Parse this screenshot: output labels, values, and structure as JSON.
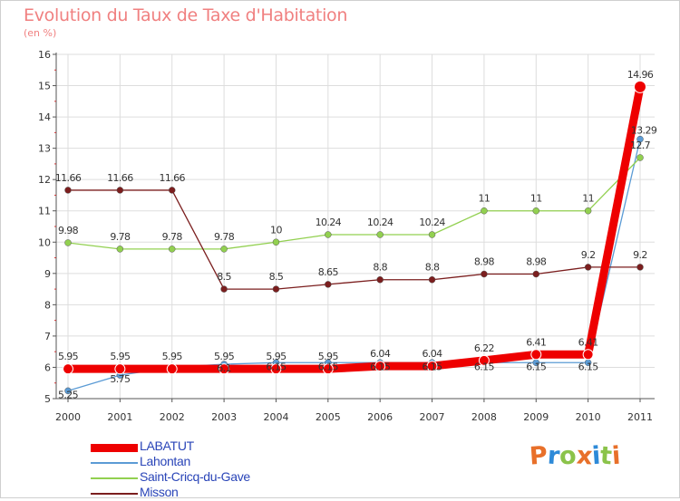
{
  "title": "Evolution du Taux de Taxe d'Habitation",
  "unit": "(en %)",
  "logo_text": "Proxiti",
  "colors": {
    "background": "#ffffff",
    "title": "#f08080",
    "grid": "#dddddd",
    "axis": "#555555",
    "legend_text": "#2a45b8"
  },
  "chart_data": {
    "type": "line",
    "title": "Evolution du Taux de Taxe d'Habitation",
    "ylabel": "(en %)",
    "xlabel": "",
    "ylim": [
      5,
      16
    ],
    "yticks": [
      "5",
      "6",
      "7",
      "8",
      "9",
      "10",
      "11",
      "12",
      "13",
      "14",
      "15",
      "16"
    ],
    "categories": [
      "2000",
      "2001",
      "2002",
      "2003",
      "2004",
      "2005",
      "2006",
      "2007",
      "2008",
      "2009",
      "2010",
      "2011"
    ],
    "grid": true,
    "legend_position": "bottom-left",
    "series": [
      {
        "name": "LABATUT",
        "color": "#ee0000",
        "style": "thick",
        "values": [
          5.95,
          5.95,
          5.95,
          5.95,
          5.95,
          5.95,
          6.04,
          6.04,
          6.22,
          6.41,
          6.41,
          14.96
        ],
        "labels": [
          "5.95",
          "5.95",
          "5.95",
          "5.95",
          "5.95",
          "5.95",
          "6.04",
          "6.04",
          "6.22",
          "6.41",
          "6.41",
          "14.96"
        ]
      },
      {
        "name": "Lahontan",
        "color": "#5b9bd5",
        "style": "thin",
        "values": [
          5.25,
          5.75,
          6.0,
          6.1,
          6.15,
          6.15,
          6.15,
          6.15,
          6.15,
          6.15,
          6.15,
          13.29
        ],
        "labels": [
          "5.25",
          "5.75",
          "",
          "6.1",
          "6.15",
          "6.15",
          "6.15",
          "6.15",
          "6.15",
          "6.15",
          "6.15",
          "13.29"
        ]
      },
      {
        "name": "Saint-Cricq-du-Gave",
        "color": "#92d050",
        "style": "thin",
        "values": [
          9.98,
          9.78,
          9.78,
          9.78,
          10,
          10.24,
          10.24,
          10.24,
          11,
          11,
          11,
          12.7
        ],
        "labels": [
          "9.98",
          "9.78",
          "9.78",
          "9.78",
          "10",
          "10.24",
          "10.24",
          "10.24",
          "11",
          "11",
          "11",
          "12.7"
        ]
      },
      {
        "name": "Misson",
        "color": "#7b1e1e",
        "style": "thin",
        "values": [
          11.66,
          11.66,
          11.66,
          8.5,
          8.5,
          8.65,
          8.8,
          8.8,
          8.98,
          8.98,
          9.2,
          9.2
        ],
        "labels": [
          "11.66",
          "11.66",
          "11.66",
          "8.5",
          "8.5",
          "8.65",
          "8.8",
          "8.8",
          "8.98",
          "8.98",
          "9.2",
          "9.2"
        ]
      }
    ]
  }
}
